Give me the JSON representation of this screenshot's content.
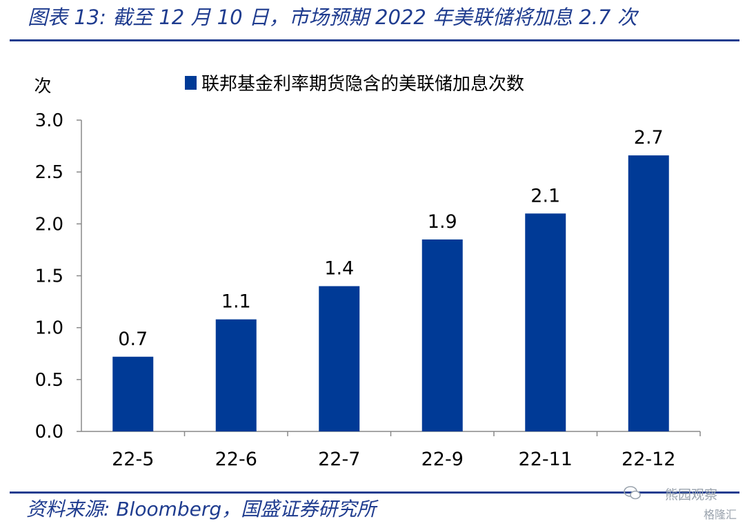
{
  "header": {
    "title": "图表 13: 截至 12 月 10 日，市场预期 2022 年美联储将加息 2.7 次"
  },
  "footer": {
    "source": "资料来源: Bloomberg，国盛证券研究所"
  },
  "watermark": {
    "line1": "熊园观察",
    "line2": "格隆汇",
    "icon": "wechat-icon"
  },
  "colors": {
    "bar": "#003a96",
    "title": "#1f3c8f",
    "axis": "#888888"
  },
  "chart_data": {
    "type": "bar",
    "title": "",
    "ylabel": "次",
    "xlabel": "",
    "categories": [
      "22-5",
      "22-6",
      "22-7",
      "22-9",
      "22-11",
      "22-12"
    ],
    "series": [
      {
        "name": "联邦基金利率期货隐含的美联储加息次数",
        "values": [
          0.72,
          1.08,
          1.4,
          1.85,
          2.1,
          2.66
        ],
        "labels": [
          "0.7",
          "1.1",
          "1.4",
          "1.9",
          "2.1",
          "2.7"
        ]
      }
    ],
    "yticks": [
      "0.0",
      "0.5",
      "1.0",
      "1.5",
      "2.0",
      "2.5",
      "3.0"
    ],
    "ylim": [
      0,
      3
    ],
    "grid": false,
    "legend_position": "top-center"
  }
}
